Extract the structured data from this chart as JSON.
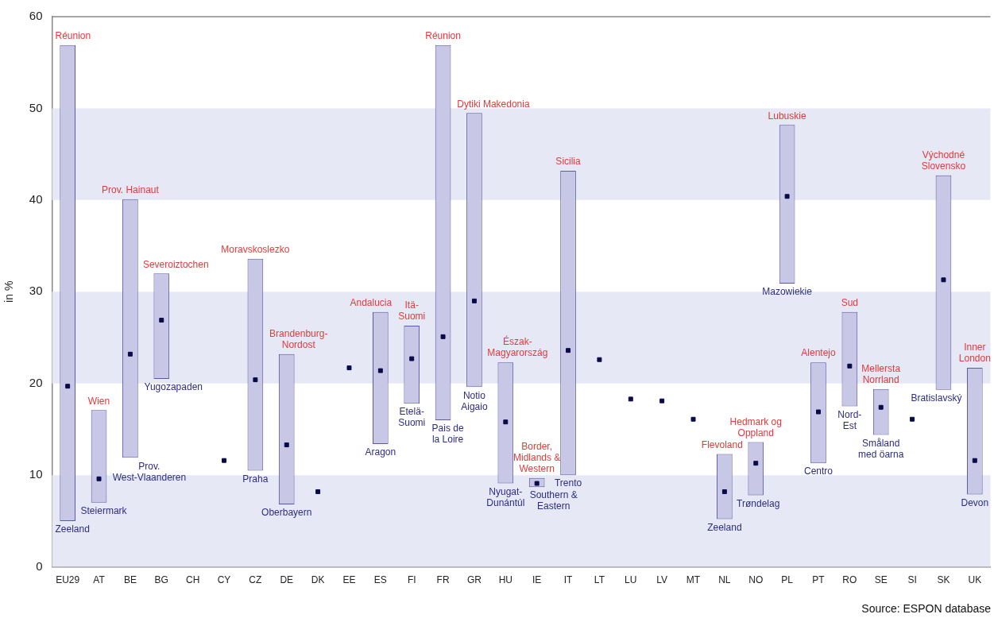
{
  "chart_data": {
    "type": "bar",
    "ylabel": "in %",
    "categories": [
      "EU29",
      "AT",
      "BE",
      "BG",
      "CH",
      "CY",
      "CZ",
      "DE",
      "DK",
      "EE",
      "ES",
      "FI",
      "FR",
      "GR",
      "HU",
      "IE",
      "IT",
      "LT",
      "LU",
      "LV",
      "MT",
      "NL",
      "NO",
      "PL",
      "PT",
      "RO",
      "SE",
      "SI",
      "SK",
      "UK"
    ],
    "series": [
      {
        "type": "bar",
        "color": "#c8c8e6",
        "base": [
          5.0,
          7.0,
          11.9,
          20.5,
          null,
          null,
          10.5,
          6.8,
          null,
          null,
          13.4,
          17.8,
          16.0,
          19.6,
          9.1,
          8.7,
          10.0,
          null,
          null,
          null,
          null,
          5.2,
          7.8,
          30.9,
          11.3,
          17.5,
          14.4,
          null,
          19.3,
          7.9
        ],
        "values": [
          51.9,
          10.1,
          28.2,
          11.5,
          null,
          null,
          23.1,
          16.4,
          null,
          null,
          14.4,
          8.5,
          40.9,
          29.9,
          13.2,
          1.0,
          33.2,
          null,
          null,
          null,
          null,
          7.1,
          5.8,
          17.3,
          11.0,
          10.3,
          5.0,
          null,
          23.4,
          13.8
        ]
      },
      {
        "type": "scatter",
        "color": "#0a0a4a",
        "x": [
          "EU29",
          "AT",
          "BE",
          "BG",
          "CH",
          "CY",
          "CZ",
          "DE",
          "DK",
          "EE",
          "ES",
          "FI",
          "FR",
          "GR",
          "HU",
          "IE",
          "IT",
          "LT",
          "LU",
          "LV",
          "MT",
          "NL",
          "NO",
          "PL",
          "PT",
          "RO",
          "SE",
          "SI",
          "SK",
          "UK"
        ],
        "values": [
          19.7,
          9.6,
          23.2,
          26.9,
          null,
          11.6,
          20.4,
          13.3,
          8.2,
          21.7,
          21.4,
          22.7,
          25.1,
          29.0,
          15.8,
          9.1,
          23.6,
          22.6,
          18.3,
          18.1,
          16.1,
          8.2,
          11.3,
          40.4,
          16.9,
          21.9,
          17.4,
          16.1,
          31.3,
          11.6
        ]
      }
    ],
    "marker": "square",
    "ylim": [
      0,
      60
    ],
    "yticks": [
      0,
      10,
      20,
      30,
      40,
      50,
      60
    ],
    "grid": false,
    "legend": false,
    "bands": [
      {
        "axis": "y",
        "from": 0,
        "to": 10,
        "color": "#e6e8f6"
      },
      {
        "axis": "y",
        "from": 20,
        "to": 30,
        "color": "#e6e8f6"
      },
      {
        "axis": "y",
        "from": 40,
        "to": 50,
        "color": "#e6e8f6"
      }
    ],
    "annotations": [
      {
        "text": "Réunion",
        "x": "EU29",
        "y": 56.9
      },
      {
        "text": "Zeeland",
        "x": "EU29",
        "y": 5.0
      },
      {
        "text": "Wien",
        "x": "AT",
        "y": 17.1
      },
      {
        "text": "Steiermark",
        "x": "AT",
        "y": 7.0
      },
      {
        "text": "Prov. Hainaut",
        "x": "BE",
        "y": 40.1
      },
      {
        "text": "Prov.\nWest-Vlaanderen",
        "x": "BE",
        "y": 11.9
      },
      {
        "text": "Severoiztochen",
        "x": "BG",
        "y": 32.0
      },
      {
        "text": "Yugozapaden",
        "x": "BG",
        "y": 20.5
      },
      {
        "text": "Moravskoslezko",
        "x": "CZ",
        "y": 33.6
      },
      {
        "text": "Praha",
        "x": "CZ",
        "y": 10.5
      },
      {
        "text": "Brandenburg-\nNordost",
        "x": "DE",
        "y": 23.2
      },
      {
        "text": "Oberbayern",
        "x": "DE",
        "y": 6.8
      },
      {
        "text": "Andalucia",
        "x": "ES",
        "y": 27.8
      },
      {
        "text": "Aragon",
        "x": "ES",
        "y": 13.4
      },
      {
        "text": "Itä-\nSuomi",
        "x": "FI",
        "y": 26.3
      },
      {
        "text": "Etelä-\nSuomi",
        "x": "FI",
        "y": 17.8
      },
      {
        "text": "Réunion",
        "x": "FR",
        "y": 56.9
      },
      {
        "text": "Pais de\nla Loire",
        "x": "FR",
        "y": 16.0
      },
      {
        "text": "Dytiki Makedonia",
        "x": "GR",
        "y": 49.5
      },
      {
        "text": "Notio\nAigaio",
        "x": "GR",
        "y": 19.6
      },
      {
        "text": "Észak-\nMagyarország",
        "x": "HU",
        "y": 22.3
      },
      {
        "text": "Nyugat-\nDunántúl",
        "x": "HU",
        "y": 9.1
      },
      {
        "text": "Border,\nMidlands &\nWestern",
        "x": "IE",
        "y": 9.7
      },
      {
        "text": "Southern &\nEastern",
        "x": "IE",
        "y": 8.7
      },
      {
        "text": "Sicilia",
        "x": "IT",
        "y": 43.2
      },
      {
        "text": "Trento",
        "x": "IT",
        "y": 10.0
      },
      {
        "text": "Flevoland",
        "x": "NL",
        "y": 12.3
      },
      {
        "text": "Zeeland",
        "x": "NL",
        "y": 5.2
      },
      {
        "text": "Hedmark og\nOppland",
        "x": "NO",
        "y": 13.6
      },
      {
        "text": "Trøndelag",
        "x": "NO",
        "y": 7.8
      },
      {
        "text": "Lubuskie",
        "x": "PL",
        "y": 48.2
      },
      {
        "text": "Mazowiekie",
        "x": "PL",
        "y": 30.9
      },
      {
        "text": "Alentejo",
        "x": "PT",
        "y": 22.3
      },
      {
        "text": "Centro",
        "x": "PT",
        "y": 11.3
      },
      {
        "text": "Sud",
        "x": "RO",
        "y": 27.8
      },
      {
        "text": "Nord-\nEst",
        "x": "RO",
        "y": 17.5
      },
      {
        "text": "Mellersta\nNorrland",
        "x": "SE",
        "y": 19.4
      },
      {
        "text": "Småland\nmed öarna",
        "x": "SE",
        "y": 14.4
      },
      {
        "text": "Východné\nSlovensko",
        "x": "SK",
        "y": 42.7
      },
      {
        "text": "Bratislavský",
        "x": "SK",
        "y": 19.3
      },
      {
        "text": "Inner\nLondon",
        "x": "UK",
        "y": 21.7
      },
      {
        "text": "Devon",
        "x": "UK",
        "y": 7.9
      },
      "Source: ESPON database"
    ]
  }
}
